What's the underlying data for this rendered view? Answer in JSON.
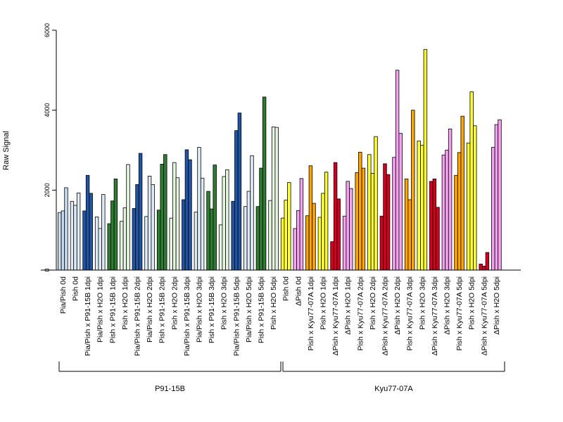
{
  "chart_data": {
    "type": "bar",
    "title": "",
    "xlabel": "",
    "ylabel": "Raw Signal",
    "ylim": [
      0,
      6000
    ],
    "yticks": [
      0,
      2000,
      4000,
      6000
    ],
    "grid": false,
    "legend": "none",
    "categories": [
      "Pia/Pish 0d",
      "Pish 0d",
      "Pia/Pish x P91-15B 1dpi",
      "Pia/Pish x H2O 1dpi",
      "Pish x P91-15B 1dpi",
      "Pish x H2O 1dpi",
      "Pia/Pish x P91-15B 2dpi",
      "Pia/Pish x H2O 2dpi",
      "Pish x P91-15B 2dpi",
      "Pish x H2O 2dpi",
      "Pia/Pish x P91-15B 3dpi",
      "Pia/Pish x H2O 3dpi",
      "Pish x P91-15B 3dpi",
      "Pish x H2O 3dpi",
      "Pia/Pish x P91-15B 5dpi",
      "Pia/Pish x H2O 5dpi",
      "Pish x P91-15B 5dpi",
      "Pish x H2O 5dpi",
      "Pish 0d",
      "ΔPish 0d",
      "Pish x Kyu77-07A 1dpi",
      "Pish x H2O 1dpi",
      "ΔPish x Kyu77-07A 1dpi",
      "ΔPish x H2O 1dpi",
      "Pish x Kyu77-07A 2dpi",
      "Pish x H2O 2dpi",
      "ΔPish x Kyu77-07A 2dpi",
      "ΔPish x H2O 2dpi",
      "Pish x Kyu77-07A 3dpi",
      "Pish x H2O 3dpi",
      "ΔPish x Kyu77-07A 3dpi",
      "ΔPish x H2O 3dpi",
      "Pish x Kyu77-07A 5dpi",
      "Pish x H2O 5dpi",
      "ΔPish x Kyu77-07A 5dpi",
      "ΔPish x H2O 5dpi"
    ],
    "bar_colors": [
      "#c6dbef",
      "#deebf7",
      "#2156a5",
      "#deebf7",
      "#2e7d32",
      "#e5f5e0",
      "#2156a5",
      "#deebf7",
      "#2e7d32",
      "#e5f5e0",
      "#2156a5",
      "#deebf7",
      "#2e7d32",
      "#e5f5e0",
      "#2156a5",
      "#deebf7",
      "#2e7d32",
      "#e5f5e0",
      "#ffff33",
      "#f5a3f0",
      "#ffa500",
      "#ffff33",
      "#d7001f",
      "#f5a3f0",
      "#ffa500",
      "#ffff33",
      "#d7001f",
      "#f5a3f0",
      "#ffa500",
      "#ffff33",
      "#d7001f",
      "#f5a3f0",
      "#ffa500",
      "#ffff33",
      "#d7001f",
      "#f5a3f0"
    ],
    "values": [
      [
        1440,
        1480,
        2060
      ],
      [
        1720,
        1620,
        1930
      ],
      [
        1480,
        2370,
        1920
      ],
      [
        1330,
        1040,
        1890
      ],
      [
        1160,
        1730,
        2280
      ],
      [
        1220,
        1560,
        2640
      ],
      [
        1540,
        2140,
        2920
      ],
      [
        1340,
        2350,
        2140
      ],
      [
        1500,
        2650,
        2890
      ],
      [
        1300,
        2690,
        2310
      ],
      [
        1760,
        3010,
        2760
      ],
      [
        1450,
        3070,
        2300
      ],
      [
        1970,
        1530,
        2630
      ],
      [
        1130,
        2340,
        2510
      ],
      [
        1720,
        3490,
        3930
      ],
      [
        1590,
        1970,
        2860
      ],
      [
        1590,
        2550,
        4330
      ],
      [
        1740,
        3580,
        3570
      ],
      [
        1300,
        1750,
        2190
      ],
      [
        1040,
        1490,
        2290
      ],
      [
        1360,
        2610,
        1670
      ],
      [
        1320,
        1920,
        2450
      ],
      [
        710,
        2690,
        1780
      ],
      [
        1350,
        2220,
        2040
      ],
      [
        2440,
        2950,
        2550
      ],
      [
        2890,
        2420,
        3340
      ],
      [
        1350,
        2660,
        2390
      ],
      [
        2820,
        5000,
        3420
      ],
      [
        2280,
        1760,
        4000
      ],
      [
        3230,
        3120,
        5520
      ],
      [
        2220,
        2280,
        1570
      ],
      [
        2880,
        3000,
        3530
      ],
      [
        2370,
        2940,
        3850
      ],
      [
        3180,
        4460,
        3610
      ],
      [
        150,
        100,
        440
      ],
      [
        3070,
        3640,
        3760
      ]
    ],
    "groups": [
      {
        "label": "P91-15B",
        "start": 0,
        "end": 17
      },
      {
        "label": "Kyu77-07A",
        "start": 18,
        "end": 35
      }
    ]
  }
}
